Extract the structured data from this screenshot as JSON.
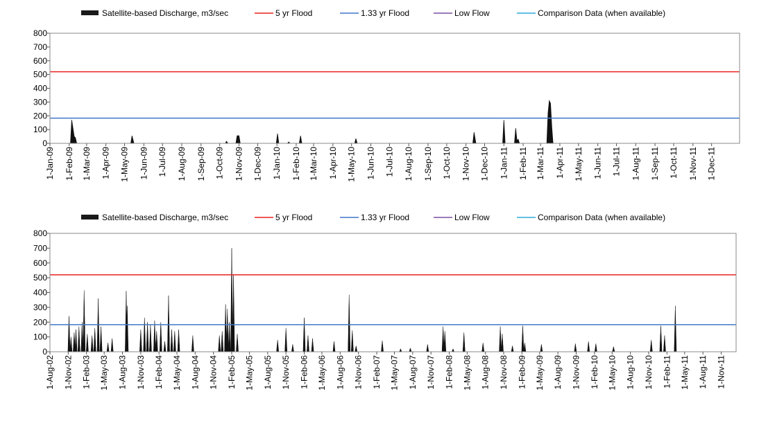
{
  "chart_data": [
    {
      "type": "area",
      "legend": [
        {
          "label": "Satellite-based Discharge, m3/sec",
          "color": "#1a1a1a",
          "kind": "area"
        },
        {
          "label": "5 yr Flood",
          "color": "#e8211f",
          "kind": "line"
        },
        {
          "label": "1.33 yr Flood",
          "color": "#3f77c8",
          "kind": "line"
        },
        {
          "label": "Low Flow",
          "color": "#7a4fa3",
          "kind": "line"
        },
        {
          "label": "Comparison Data (when available)",
          "color": "#2ea8d8",
          "kind": "line"
        }
      ],
      "legend_placement": "top",
      "ylim": [
        0,
        800
      ],
      "yticks": [
        0,
        100,
        200,
        300,
        400,
        500,
        600,
        700,
        800
      ],
      "xlim": [
        "2009-01-01",
        "2012-01-15"
      ],
      "xticks": [
        "1-Jan-09",
        "1-Feb-09",
        "1-Mar-09",
        "1-Apr-09",
        "1-May-09",
        "1-Jun-09",
        "1-Jul-09",
        "1-Aug-09",
        "1-Sep-09",
        "1-Oct-09",
        "1-Nov-09",
        "1-Dec-09",
        "1-Jan-10",
        "1-Feb-10",
        "1-Mar-10",
        "1-Apr-10",
        "1-May-10",
        "1-Jun-10",
        "1-Jul-10",
        "1-Aug-10",
        "1-Sep-10",
        "1-Oct-10",
        "1-Nov-10",
        "1-Dec-10",
        "1-Jan-11",
        "1-Feb-11",
        "1-Mar-11",
        "1-Apr-11",
        "1-May-11",
        "1-Jun-11",
        "1-Jul-11",
        "1-Aug-11",
        "1-Sep-11",
        "1-Oct-11",
        "1-Nov-11",
        "1-Dec-11"
      ],
      "reference_lines": {
        "flood_5yr": 520,
        "flood_1_33yr": 183,
        "low_flow": 0,
        "comparison": 0
      },
      "series": [
        {
          "name": "Satellite-based Discharge, m3/sec",
          "points": [
            [
              "2009-02-03",
              0
            ],
            [
              "2009-02-05",
              170
            ],
            [
              "2009-02-07",
              110
            ],
            [
              "2009-02-09",
              50
            ],
            [
              "2009-02-11",
              40
            ],
            [
              "2009-02-13",
              0
            ],
            [
              "2009-05-11",
              0
            ],
            [
              "2009-05-13",
              55
            ],
            [
              "2009-05-16",
              0
            ],
            [
              "2009-10-10",
              0
            ],
            [
              "2009-10-12",
              15
            ],
            [
              "2009-10-14",
              0
            ],
            [
              "2009-10-27",
              0
            ],
            [
              "2009-10-29",
              55
            ],
            [
              "2009-11-01",
              55
            ],
            [
              "2009-11-03",
              0
            ],
            [
              "2009-12-31",
              0
            ],
            [
              "2010-01-02",
              70
            ],
            [
              "2010-01-04",
              0
            ],
            [
              "2010-01-18",
              0
            ],
            [
              "2010-01-20",
              10
            ],
            [
              "2010-01-22",
              0
            ],
            [
              "2010-02-06",
              0
            ],
            [
              "2010-02-08",
              55
            ],
            [
              "2010-02-10",
              0
            ],
            [
              "2010-05-06",
              0
            ],
            [
              "2010-05-08",
              35
            ],
            [
              "2010-05-10",
              0
            ],
            [
              "2010-11-12",
              0
            ],
            [
              "2010-11-14",
              80
            ],
            [
              "2010-11-17",
              0
            ],
            [
              "2010-12-30",
              0
            ],
            [
              "2011-01-01",
              170
            ],
            [
              "2011-01-03",
              0
            ],
            [
              "2011-01-18",
              0
            ],
            [
              "2011-01-20",
              110
            ],
            [
              "2011-01-22",
              20
            ],
            [
              "2011-01-24",
              30
            ],
            [
              "2011-01-26",
              0
            ],
            [
              "2011-03-11",
              0
            ],
            [
              "2011-03-13",
              220
            ],
            [
              "2011-03-15",
              310
            ],
            [
              "2011-03-17",
              290
            ],
            [
              "2011-03-19",
              120
            ],
            [
              "2011-03-21",
              0
            ]
          ]
        }
      ]
    },
    {
      "type": "area",
      "legend": [
        {
          "label": "Satellite-based Discharge, m3/sec",
          "color": "#1a1a1a",
          "kind": "area"
        },
        {
          "label": "5 yr Flood",
          "color": "#e8211f",
          "kind": "line"
        },
        {
          "label": "1.33 yr Flood",
          "color": "#3f77c8",
          "kind": "line"
        },
        {
          "label": "Low Flow",
          "color": "#7a4fa3",
          "kind": "line"
        },
        {
          "label": "Comparison Data (when available)",
          "color": "#2ea8d8",
          "kind": "line"
        }
      ],
      "legend_placement": "top",
      "ylim": [
        0,
        800
      ],
      "yticks": [
        0,
        100,
        200,
        300,
        400,
        500,
        600,
        700,
        800
      ],
      "xlim": [
        "2002-08-01",
        "2012-01-15"
      ],
      "xticks": [
        "1-Aug-02",
        "1-Nov-02",
        "1-Feb-03",
        "1-May-03",
        "1-Aug-03",
        "1-Nov-03",
        "1-Feb-04",
        "1-May-04",
        "1-Aug-04",
        "1-Nov-04",
        "1-Feb-05",
        "1-May-05",
        "1-Aug-05",
        "1-Nov-05",
        "1-Feb-06",
        "1-May-06",
        "1-Aug-06",
        "1-Nov-06",
        "1-Feb-07",
        "1-May-07",
        "1-Aug-07",
        "1-Nov-07",
        "1-Feb-08",
        "1-May-08",
        "1-Aug-08",
        "1-Nov-08",
        "1-Feb-09",
        "1-May-09",
        "1-Aug-09",
        "1-Nov-09",
        "1-Feb-10",
        "1-May-10",
        "1-Aug-10",
        "1-Nov-10",
        "1-Feb-11",
        "1-May-11",
        "1-Aug-11",
        "1-Nov-11"
      ],
      "reference_lines": {
        "flood_5yr": 520,
        "flood_1_33yr": 183,
        "low_flow": 0,
        "comparison": 0
      },
      "series": [
        {
          "name": "Satellite-based Discharge, m3/sec",
          "spikes": [
            [
              "2002-11-05",
              240
            ],
            [
              "2002-11-15",
              100
            ],
            [
              "2002-12-01",
              130
            ],
            [
              "2002-12-10",
              150
            ],
            [
              "2002-12-25",
              170
            ],
            [
              "2003-01-10",
              200
            ],
            [
              "2003-01-20",
              415
            ],
            [
              "2003-02-05",
              120
            ],
            [
              "2003-03-01",
              110
            ],
            [
              "2003-03-15",
              160
            ],
            [
              "2003-04-01",
              360
            ],
            [
              "2003-04-15",
              170
            ],
            [
              "2003-05-20",
              60
            ],
            [
              "2003-06-10",
              90
            ],
            [
              "2003-08-20",
              410
            ],
            [
              "2003-08-25",
              310
            ],
            [
              "2003-11-01",
              150
            ],
            [
              "2003-11-20",
              230
            ],
            [
              "2003-12-05",
              200
            ],
            [
              "2003-12-20",
              180
            ],
            [
              "2004-01-10",
              210
            ],
            [
              "2004-01-20",
              140
            ],
            [
              "2004-02-10",
              200
            ],
            [
              "2004-03-01",
              70
            ],
            [
              "2004-03-20",
              380
            ],
            [
              "2004-04-05",
              150
            ],
            [
              "2004-04-20",
              140
            ],
            [
              "2004-05-10",
              150
            ],
            [
              "2004-07-20",
              110
            ],
            [
              "2004-12-01",
              110
            ],
            [
              "2004-12-15",
              140
            ],
            [
              "2005-01-01",
              320
            ],
            [
              "2005-01-10",
              290
            ],
            [
              "2005-01-20",
              200
            ],
            [
              "2005-02-01",
              700
            ],
            [
              "2005-02-10",
              520
            ],
            [
              "2005-03-01",
              120
            ],
            [
              "2005-09-20",
              80
            ],
            [
              "2005-11-01",
              160
            ],
            [
              "2005-12-05",
              50
            ],
            [
              "2006-02-01",
              230
            ],
            [
              "2006-02-20",
              110
            ],
            [
              "2006-03-15",
              90
            ],
            [
              "2006-07-01",
              70
            ],
            [
              "2006-09-15",
              385
            ],
            [
              "2006-10-01",
              145
            ],
            [
              "2006-10-20",
              40
            ],
            [
              "2007-03-01",
              75
            ],
            [
              "2007-06-01",
              20
            ],
            [
              "2007-07-20",
              25
            ],
            [
              "2007-10-15",
              50
            ],
            [
              "2008-01-01",
              170
            ],
            [
              "2008-01-10",
              140
            ],
            [
              "2008-02-20",
              20
            ],
            [
              "2008-04-15",
              130
            ],
            [
              "2008-07-20",
              60
            ],
            [
              "2008-10-15",
              170
            ],
            [
              "2008-10-25",
              120
            ],
            [
              "2008-12-15",
              40
            ],
            [
              "2009-02-05",
              175
            ],
            [
              "2009-02-15",
              60
            ],
            [
              "2009-05-10",
              50
            ],
            [
              "2009-10-28",
              55
            ],
            [
              "2010-01-02",
              70
            ],
            [
              "2010-02-08",
              55
            ],
            [
              "2010-05-08",
              35
            ],
            [
              "2010-11-14",
              80
            ],
            [
              "2011-01-01",
              175
            ],
            [
              "2011-01-20",
              110
            ],
            [
              "2011-03-15",
              310
            ]
          ]
        }
      ]
    }
  ]
}
